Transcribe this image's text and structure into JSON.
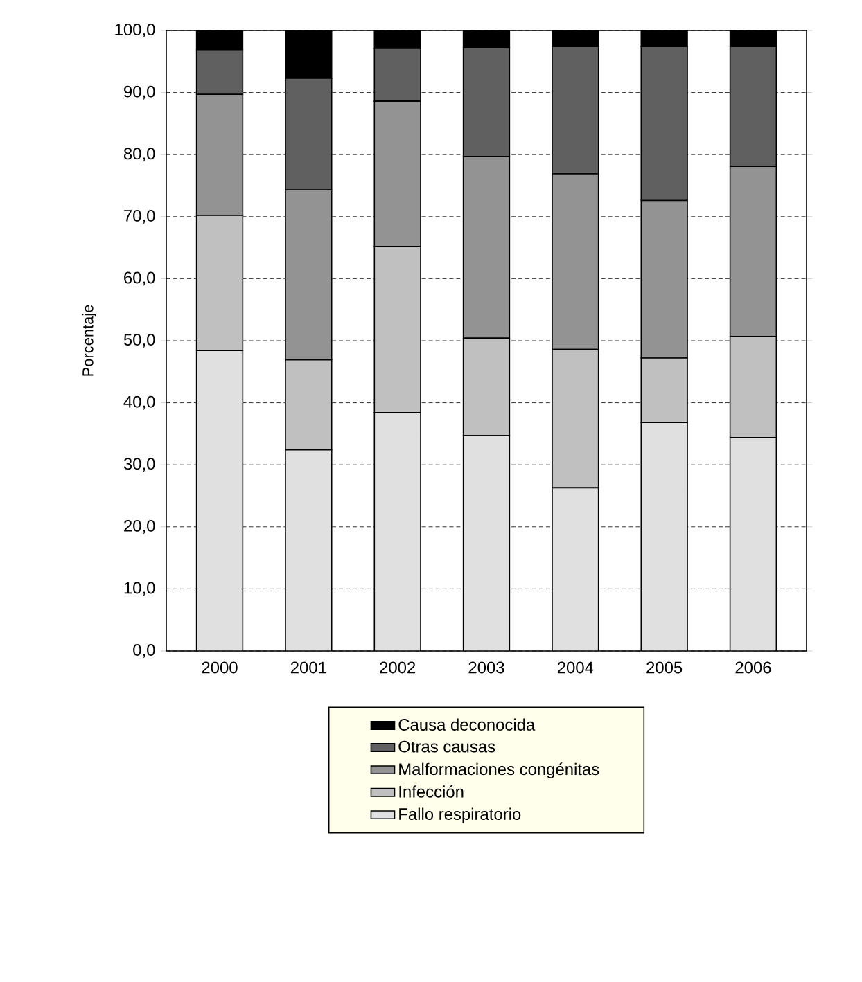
{
  "chart_data": {
    "type": "bar",
    "stacked": true,
    "ylabel": "Porcentaje",
    "categories": [
      "2000",
      "2001",
      "2002",
      "2003",
      "2004",
      "2005",
      "2006"
    ],
    "series": [
      {
        "name": "Fallo respiratorio",
        "color": "#e0e0e0",
        "values": [
          48.4,
          32.4,
          38.4,
          34.7,
          26.3,
          36.8,
          34.4
        ]
      },
      {
        "name": "Infección",
        "color": "#c0c0c0",
        "values": [
          21.8,
          14.5,
          26.8,
          15.7,
          22.3,
          10.4,
          16.3
        ]
      },
      {
        "name": "Malformaciones congénitas",
        "color": "#939393",
        "values": [
          19.5,
          27.4,
          23.4,
          29.3,
          28.3,
          25.4,
          27.4
        ]
      },
      {
        "name": "Otras causas",
        "color": "#606060",
        "values": [
          7.2,
          18.0,
          8.5,
          17.5,
          20.5,
          24.8,
          19.3
        ]
      },
      {
        "name": "Causa deconocida",
        "color": "#000000",
        "values": [
          3.1,
          7.7,
          2.9,
          2.8,
          2.6,
          2.6,
          2.6
        ]
      }
    ],
    "ylim": [
      0,
      100
    ],
    "yticks": [
      {
        "value": 0,
        "label": "0,0"
      },
      {
        "value": 10,
        "label": "10,0"
      },
      {
        "value": 20,
        "label": "20,0"
      },
      {
        "value": 30,
        "label": "30,0"
      },
      {
        "value": 40,
        "label": "40,0"
      },
      {
        "value": 50,
        "label": "50,0"
      },
      {
        "value": 60,
        "label": "60,0"
      },
      {
        "value": 70,
        "label": "70,0"
      },
      {
        "value": 80,
        "label": "80,0"
      },
      {
        "value": 90,
        "label": "90,0"
      },
      {
        "value": 100,
        "label": "100,0"
      }
    ],
    "grid": "y",
    "legend": "bottom"
  }
}
